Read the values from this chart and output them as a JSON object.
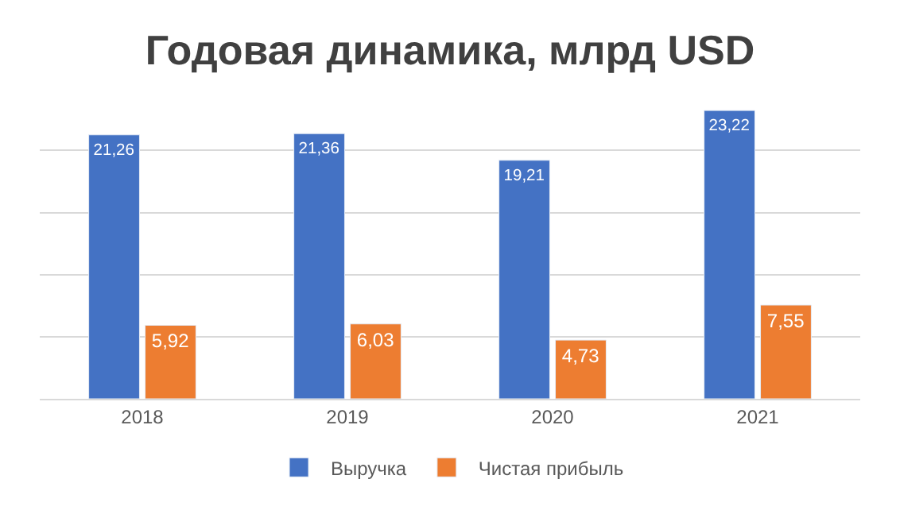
{
  "chart_data": {
    "type": "bar",
    "title": "Годовая динамика, млрд USD",
    "categories": [
      "2018",
      "2019",
      "2020",
      "2021"
    ],
    "series": [
      {
        "name": "Выручка",
        "color": "#4472c4",
        "values": [
          21.26,
          21.36,
          19.21,
          23.22
        ],
        "value_labels": [
          "21,26",
          "21,36",
          "19,21",
          "23,22"
        ]
      },
      {
        "name": "Чистая прибыль",
        "color": "#ed7d31",
        "values": [
          5.92,
          6.03,
          4.73,
          7.55
        ],
        "value_labels": [
          "5,92",
          "6,03",
          "4,73",
          "7,55"
        ]
      }
    ],
    "tick_labels": "x",
    "grid": "y",
    "legend": "bottom"
  }
}
